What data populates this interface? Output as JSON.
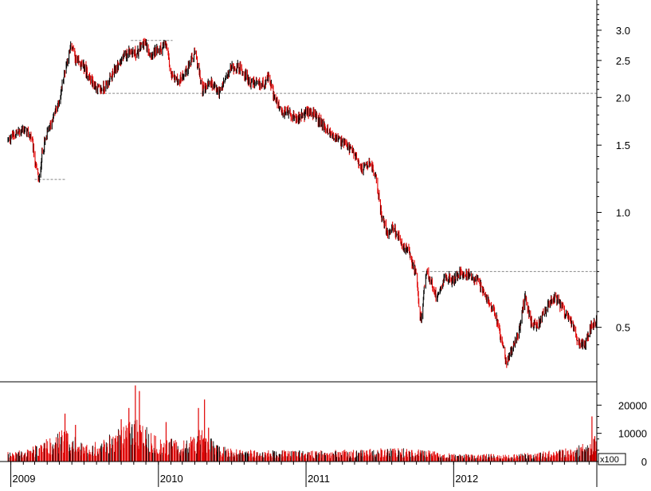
{
  "chart_data": [
    {
      "type": "candlestick",
      "scale": "log",
      "ylim": [
        0.36,
        3.6
      ],
      "y_ticks": [
        "3.0",
        "2.5",
        "2.0",
        "1.5",
        "1.0",
        "0.5"
      ],
      "y_tick_values": [
        3.0,
        2.5,
        2.0,
        1.5,
        1.0,
        0.5
      ],
      "x_labels": [
        "2009",
        "2010",
        "2011",
        "2012"
      ],
      "x_label_dates": [
        "2009-01-01",
        "2010-01-01",
        "2011-01-01",
        "2012-01-01"
      ],
      "x_range": [
        "2008-12-25",
        "2012-12-20"
      ],
      "up_color": "#000000",
      "down_color": "#e00000",
      "price_path": [
        [
          "2008-12-25",
          1.55
        ],
        [
          "2009-01-10",
          1.6
        ],
        [
          "2009-02-01",
          1.65
        ],
        [
          "2009-02-20",
          1.58
        ],
        [
          "2009-03-05",
          1.3
        ],
        [
          "2009-03-12",
          1.2
        ],
        [
          "2009-03-20",
          1.45
        ],
        [
          "2009-04-05",
          1.65
        ],
        [
          "2009-05-01",
          1.95
        ],
        [
          "2009-05-20",
          2.5
        ],
        [
          "2009-06-01",
          2.75
        ],
        [
          "2009-06-10",
          2.5
        ],
        [
          "2009-07-01",
          2.4
        ],
        [
          "2009-07-20",
          2.2
        ],
        [
          "2009-08-10",
          2.08
        ],
        [
          "2009-09-01",
          2.2
        ],
        [
          "2009-09-25",
          2.45
        ],
        [
          "2009-10-20",
          2.65
        ],
        [
          "2009-11-10",
          2.6
        ],
        [
          "2009-11-25",
          2.8
        ],
        [
          "2009-12-15",
          2.6
        ],
        [
          "2010-01-10",
          2.7
        ],
        [
          "2010-01-20",
          2.75
        ],
        [
          "2010-02-01",
          2.3
        ],
        [
          "2010-02-20",
          2.2
        ],
        [
          "2010-03-15",
          2.4
        ],
        [
          "2010-04-01",
          2.6
        ],
        [
          "2010-04-20",
          2.1
        ],
        [
          "2010-05-10",
          2.2
        ],
        [
          "2010-06-01",
          2.05
        ],
        [
          "2010-07-01",
          2.4
        ],
        [
          "2010-07-20",
          2.4
        ],
        [
          "2010-08-15",
          2.2
        ],
        [
          "2010-09-10",
          2.15
        ],
        [
          "2010-10-01",
          2.25
        ],
        [
          "2010-10-15",
          2.0
        ],
        [
          "2010-11-01",
          1.8
        ],
        [
          "2010-11-15",
          1.85
        ],
        [
          "2010-12-10",
          1.75
        ],
        [
          "2011-01-10",
          1.85
        ],
        [
          "2011-02-01",
          1.75
        ],
        [
          "2011-02-20",
          1.65
        ],
        [
          "2011-03-10",
          1.58
        ],
        [
          "2011-04-01",
          1.52
        ],
        [
          "2011-05-01",
          1.42
        ],
        [
          "2011-05-20",
          1.3
        ],
        [
          "2011-06-10",
          1.35
        ],
        [
          "2011-06-25",
          1.2
        ],
        [
          "2011-07-05",
          1.0
        ],
        [
          "2011-07-20",
          0.88
        ],
        [
          "2011-08-05",
          0.92
        ],
        [
          "2011-08-25",
          0.82
        ],
        [
          "2011-09-15",
          0.78
        ],
        [
          "2011-09-30",
          0.68
        ],
        [
          "2011-10-10",
          0.52
        ],
        [
          "2011-10-15",
          0.55
        ],
        [
          "2011-10-25",
          0.7
        ],
        [
          "2011-11-05",
          0.66
        ],
        [
          "2011-11-20",
          0.6
        ],
        [
          "2011-12-10",
          0.68
        ],
        [
          "2012-01-01",
          0.66
        ],
        [
          "2012-01-15",
          0.7
        ],
        [
          "2012-02-10",
          0.68
        ],
        [
          "2012-03-01",
          0.66
        ],
        [
          "2012-03-20",
          0.6
        ],
        [
          "2012-04-10",
          0.56
        ],
        [
          "2012-04-25",
          0.48
        ],
        [
          "2012-05-10",
          0.4
        ],
        [
          "2012-05-25",
          0.44
        ],
        [
          "2012-06-10",
          0.48
        ],
        [
          "2012-06-25",
          0.6
        ],
        [
          "2012-07-10",
          0.52
        ],
        [
          "2012-07-25",
          0.5
        ],
        [
          "2012-08-15",
          0.55
        ],
        [
          "2012-09-05",
          0.6
        ],
        [
          "2012-09-25",
          0.56
        ],
        [
          "2012-10-15",
          0.52
        ],
        [
          "2012-11-05",
          0.46
        ],
        [
          "2012-11-20",
          0.45
        ],
        [
          "2012-12-05",
          0.5
        ],
        [
          "2012-12-20",
          0.52
        ]
      ],
      "reference_lines": [
        {
          "value": 2.82,
          "from": "2009-10-25",
          "to": "2010-02-05"
        },
        {
          "value": 2.05,
          "from": "2009-08-01",
          "to": "2012-12-20"
        },
        {
          "value": 1.22,
          "from": "2009-03-01",
          "to": "2009-05-15"
        },
        {
          "value": 0.7,
          "from": "2011-10-15",
          "to": "2012-12-20"
        }
      ]
    },
    {
      "type": "bar",
      "ylim": [
        0,
        28000
      ],
      "y_ticks": [
        "20000",
        "10000",
        "0"
      ],
      "y_tick_values": [
        20000,
        10000,
        0
      ],
      "unit_label": "x100",
      "bar_color": "#e00000",
      "volume_path": [
        [
          "2008-12-25",
          2500
        ],
        [
          "2009-02-15",
          3500
        ],
        [
          "2009-04-01",
          6000
        ],
        [
          "2009-05-15",
          9000
        ],
        [
          "2009-07-01",
          4500
        ],
        [
          "2009-09-01",
          7000
        ],
        [
          "2009-10-15",
          11000
        ],
        [
          "2009-11-15",
          12000
        ],
        [
          "2010-01-01",
          6000
        ],
        [
          "2010-03-15",
          6000
        ],
        [
          "2010-04-15",
          9000
        ],
        [
          "2010-06-01",
          4000
        ],
        [
          "2010-09-01",
          3000
        ],
        [
          "2010-12-01",
          3000
        ],
        [
          "2011-03-01",
          3000
        ],
        [
          "2011-07-01",
          3500
        ],
        [
          "2011-10-01",
          3500
        ],
        [
          "2012-01-01",
          2000
        ],
        [
          "2012-05-01",
          2000
        ],
        [
          "2012-08-01",
          2500
        ],
        [
          "2012-11-01",
          4000
        ],
        [
          "2012-12-20",
          7000
        ]
      ],
      "spikes": [
        [
          "2009-05-15",
          17000
        ],
        [
          "2009-06-10",
          13000
        ],
        [
          "2009-10-01",
          15000
        ],
        [
          "2009-10-20",
          19000
        ],
        [
          "2009-11-05",
          27000
        ],
        [
          "2009-11-15",
          25000
        ],
        [
          "2010-01-20",
          14000
        ],
        [
          "2010-04-10",
          19000
        ],
        [
          "2010-04-25",
          22000
        ],
        [
          "2010-05-05",
          12000
        ],
        [
          "2012-12-08",
          16000
        ],
        [
          "2012-12-15",
          9000
        ]
      ]
    }
  ]
}
